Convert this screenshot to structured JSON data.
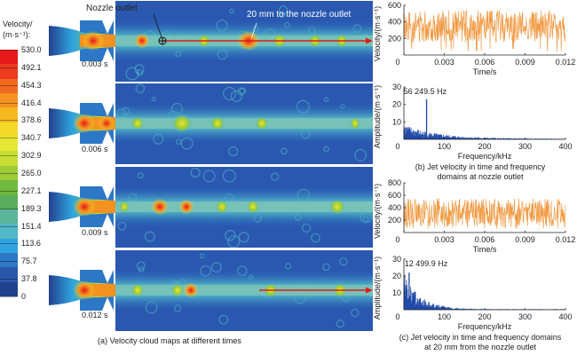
{
  "colorbar": {
    "title_line1": "Velocity/",
    "title_line2": "(m·s⁻¹):",
    "ticks": [
      "530.0",
      "492.1",
      "454.3",
      "416.4",
      "378.6",
      "340.7",
      "302.9",
      "265.0",
      "227.1",
      "189.3",
      "151.4",
      "113.6",
      "75.7",
      "37.8",
      "0"
    ],
    "colors": [
      "#e8191c",
      "#ee3a1e",
      "#f26a1f",
      "#f39220",
      "#f6b81f",
      "#f3d92a",
      "#e6e636",
      "#c7dd33",
      "#9ccb36",
      "#70b93c",
      "#5aad5c",
      "#5ab49a",
      "#52b7c6",
      "#2fa3df",
      "#2c78c6",
      "#2a56ac",
      "#23408f"
    ]
  },
  "maps": {
    "caption": "(a) Velocity cloud maps at different times",
    "annotation_nozzle": "Nozzle outlet",
    "annotation_20mm": "20 mm to the nozzle outlet",
    "times": [
      "0.003 s",
      "0.006 s",
      "0.009 s",
      "0.012 s"
    ]
  },
  "chart_data": [
    {
      "type": "line",
      "id": "b-time",
      "xlabel": "Time/s",
      "ylabel": "Velocity/(m·s⁻¹)",
      "xlim": [
        0,
        0.012
      ],
      "ylim": [
        0,
        600
      ],
      "xticks": [
        "0",
        "0.003",
        "0.006",
        "0.009",
        "0.012"
      ],
      "yticks": [
        "200",
        "400",
        "600"
      ],
      "color": "#f08a24",
      "series": [
        {
          "name": "nozzle outlet velocity",
          "mean": 350,
          "min": 20,
          "max": 540
        }
      ]
    },
    {
      "type": "bar",
      "id": "b-freq",
      "xlabel": "Frequency/kHz",
      "ylabel": "Amplitude/(m·s⁻¹)",
      "xlim": [
        0,
        400
      ],
      "ylim": [
        0,
        30
      ],
      "xticks": [
        "0",
        "100",
        "200",
        "300",
        "400"
      ],
      "yticks": [
        "10",
        "20",
        "30"
      ],
      "color": "#1f4aa8",
      "annotation": "56 249.5 Hz",
      "peak": {
        "x": 56.25,
        "y": 23
      },
      "caption_line1": "(b) Jet velocity in time and frequency",
      "caption_line2": "domains at nozzle outlet"
    },
    {
      "type": "line",
      "id": "c-time",
      "xlabel": "Time/s",
      "ylabel": "Velocity/(m·s⁻¹)",
      "xlim": [
        0,
        0.012
      ],
      "ylim": [
        0,
        800
      ],
      "xticks": [
        "0",
        "0.003",
        "0.006",
        "0.009",
        "0.012"
      ],
      "yticks": [
        "200",
        "400",
        "600",
        "800"
      ],
      "color": "#f08a24",
      "series": [
        {
          "name": "velocity at 20 mm",
          "mean": 320,
          "min": 60,
          "max": 680
        }
      ]
    },
    {
      "type": "bar",
      "id": "c-freq",
      "xlabel": "Frequency/kHz",
      "ylabel": "Amplitude/(m·s⁻¹)",
      "xlim": [
        0,
        400
      ],
      "ylim": [
        0,
        30
      ],
      "xticks": [
        "0",
        "100",
        "200",
        "300",
        "400"
      ],
      "yticks": [
        "10",
        "20",
        "30"
      ],
      "color": "#1f4aa8",
      "annotation": "12 499.9 Hz",
      "peak": {
        "x": 12.5,
        "y": 22
      },
      "caption_line1": "(c) Jet velocity in time and frequency domains",
      "caption_line2": "at 20 mm from the nozzle outlet"
    }
  ]
}
